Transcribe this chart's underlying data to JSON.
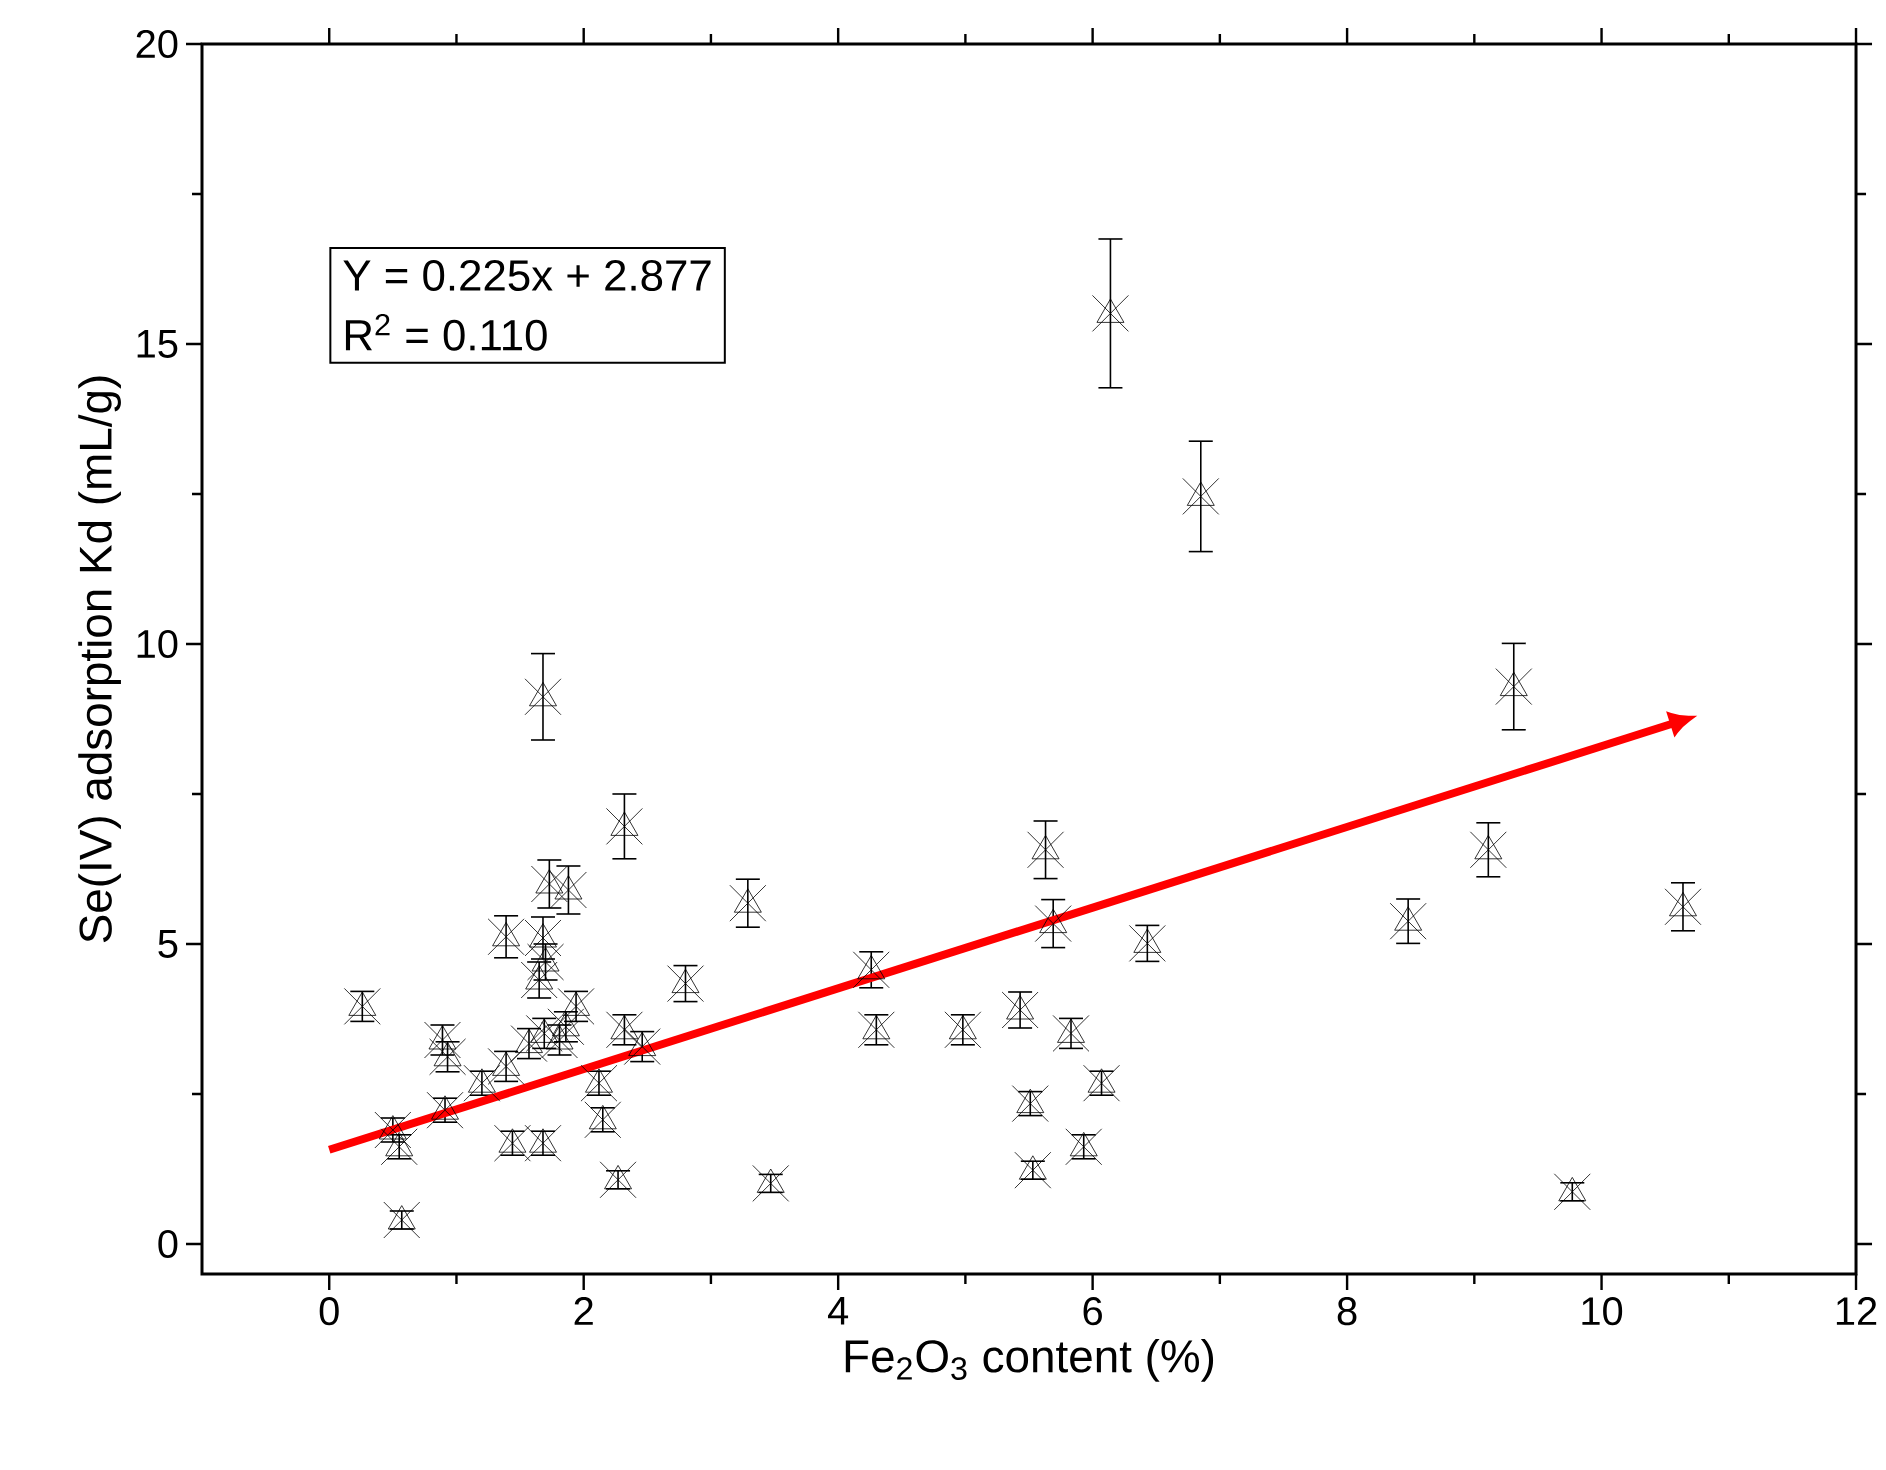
{
  "chart_data": {
    "type": "scatter",
    "xlabel": "Fe$_{2}$O$_{3}$ content (%)",
    "ylabel": "Se(IV) adsorption Kd (mL/g)",
    "xlim": [
      -1,
      12
    ],
    "ylim": [
      -0.5,
      20
    ],
    "xticks": [
      0,
      2,
      4,
      6,
      8,
      10,
      12
    ],
    "yticks": [
      0,
      5,
      10,
      15,
      20
    ],
    "grid": false,
    "annotations": [
      "Y = 0.225x + 2.877",
      "R$^{2}$ = 0.110"
    ],
    "series": [
      {
        "color": "#000000",
        "marker": "cross",
        "x": [
          0.26,
          0.5,
          0.55,
          0.57,
          0.89,
          0.93,
          0.91,
          1.2,
          1.39,
          1.39,
          1.44,
          1.57,
          1.65,
          1.68,
          1.68,
          1.68,
          1.69,
          1.7,
          1.73,
          1.81,
          1.86,
          1.88,
          1.94,
          2.12,
          2.15,
          2.27,
          2.32,
          2.32,
          2.46,
          2.8,
          3.29,
          3.47,
          4.26,
          4.3,
          4.98,
          5.43,
          5.51,
          5.53,
          5.63,
          5.69,
          5.83,
          5.93,
          6.07,
          6.14,
          6.43,
          6.85,
          8.48,
          9.11,
          9.31,
          9.77,
          10.64
        ],
        "values": [
          3.96,
          1.9,
          1.62,
          0.4,
          3.4,
          3.12,
          2.23,
          2.68,
          5.12,
          2.96,
          1.68,
          3.34,
          4.4,
          9.12,
          5.1,
          1.68,
          3.51,
          4.7,
          6.0,
          3.4,
          3.62,
          5.9,
          3.96,
          2.68,
          2.07,
          1.07,
          6.96,
          3.57,
          3.29,
          4.34,
          5.68,
          1.01,
          4.57,
          3.57,
          3.57,
          3.9,
          2.34,
          1.23,
          6.57,
          5.34,
          3.51,
          1.62,
          2.68,
          15.51,
          5.01,
          12.46,
          5.38,
          6.57,
          9.29,
          0.87,
          5.62
        ],
        "errors": [
          0.25,
          0.2,
          0.2,
          0.15,
          0.25,
          0.25,
          0.2,
          0.2,
          0.35,
          0.25,
          0.2,
          0.25,
          0.3,
          0.72,
          0.35,
          0.2,
          0.25,
          0.3,
          0.4,
          0.25,
          0.25,
          0.4,
          0.25,
          0.2,
          0.2,
          0.15,
          0.54,
          0.25,
          0.25,
          0.3,
          0.4,
          0.15,
          0.3,
          0.25,
          0.25,
          0.3,
          0.2,
          0.15,
          0.48,
          0.4,
          0.25,
          0.2,
          0.2,
          1.24,
          0.3,
          0.92,
          0.37,
          0.45,
          0.72,
          0.15,
          0.4
        ]
      },
      {
        "type": "line",
        "color": "#ff0000",
        "marker": "none",
        "x": [
          0,
          10.57
        ],
        "values": [
          1.57,
          8.68
        ]
      }
    ]
  }
}
